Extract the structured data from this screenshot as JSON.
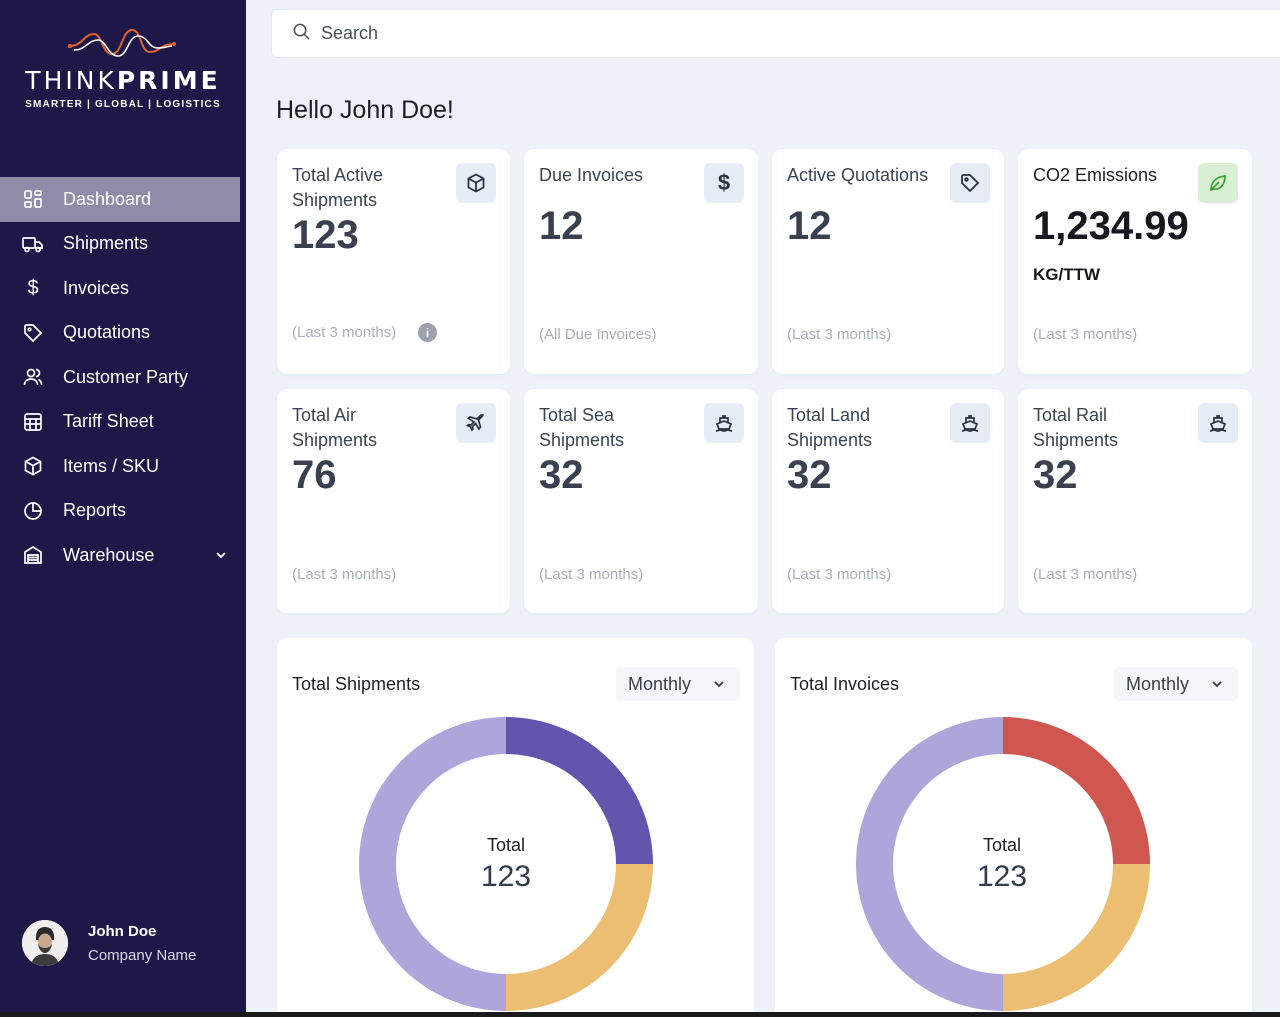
{
  "brand": {
    "name_light": "THINK",
    "name_bold": "PRIME",
    "tagline": "SMARTER | GLOBAL | LOGISTICS"
  },
  "search": {
    "placeholder": "Search"
  },
  "greeting": "Hello John Doe!",
  "sidebar": {
    "items": [
      {
        "label": "Dashboard",
        "icon": "dashboard-grid-icon",
        "active": true
      },
      {
        "label": "Shipments",
        "icon": "truck-icon"
      },
      {
        "label": "Invoices",
        "icon": "dollar-icon"
      },
      {
        "label": "Quotations",
        "icon": "tag-icon"
      },
      {
        "label": "Customer Party",
        "icon": "users-icon"
      },
      {
        "label": "Tariff Sheet",
        "icon": "table-icon"
      },
      {
        "label": "Items / SKU",
        "icon": "box-icon"
      },
      {
        "label": "Reports",
        "icon": "pie-chart-icon"
      },
      {
        "label": "Warehouse",
        "icon": "warehouse-icon",
        "expandable": true
      }
    ]
  },
  "user": {
    "name": "John Doe",
    "company": "Company Name"
  },
  "cards": {
    "total_active": {
      "label_line1": "Total Active",
      "label_line2": "Shipments",
      "value": "123",
      "sub": "(Last 3 months)",
      "icon": "box-icon"
    },
    "due_invoices": {
      "label": "Due Invoices",
      "value": "12",
      "sub": "(All Due Invoices)",
      "icon": "dollar-icon"
    },
    "active_quotations": {
      "label": "Active Quotations",
      "value": "12",
      "sub": "(Last 3 months)",
      "icon": "tag-icon"
    },
    "co2": {
      "label": "CO2 Emissions",
      "value": "1,234.99",
      "unit": "KG/TTW",
      "sub": "(Last 3 months)",
      "icon": "leaf-icon"
    },
    "air": {
      "label_line1": "Total Air",
      "label_line2": "Shipments",
      "value": "76",
      "sub": "(Last 3 months)",
      "icon": "plane-icon"
    },
    "sea": {
      "label_line1": "Total Sea",
      "label_line2": "Shipments",
      "value": "32",
      "sub": "(Last 3 months)",
      "icon": "ship-icon"
    },
    "land": {
      "label_line1": "Total Land",
      "label_line2": "Shipments",
      "value": "32",
      "sub": "(Last 3 months)",
      "icon": "ship-icon"
    },
    "rail": {
      "label_line1": "Total Rail",
      "label_line2": "Shipments",
      "value": "32",
      "sub": "(Last 3 months)",
      "icon": "ship-icon"
    }
  },
  "colors": {
    "sidebar": "#1d1847",
    "active_item": "#8e8ca8",
    "lavender": "#aea6da",
    "purple": "#6355ae",
    "amber": "#ecbe72",
    "red": "#cf5750",
    "leaf": "#3aa036"
  },
  "chart_data": [
    {
      "type": "pie",
      "title": "Total Shipments",
      "period": "Monthly",
      "center_label": "Total",
      "center_value": "123",
      "slices": [
        {
          "value": 0.25,
          "color": "#6355ae"
        },
        {
          "value": 0.25,
          "color": "#ecbe72"
        },
        {
          "value": 0.5,
          "color": "#aea6da"
        }
      ]
    },
    {
      "type": "pie",
      "title": "Total Invoices",
      "period": "Monthly",
      "center_label": "Total",
      "center_value": "123",
      "slices": [
        {
          "value": 0.25,
          "color": "#cf5750"
        },
        {
          "value": 0.25,
          "color": "#ecbe72"
        },
        {
          "value": 0.5,
          "color": "#aea6da"
        }
      ]
    }
  ]
}
